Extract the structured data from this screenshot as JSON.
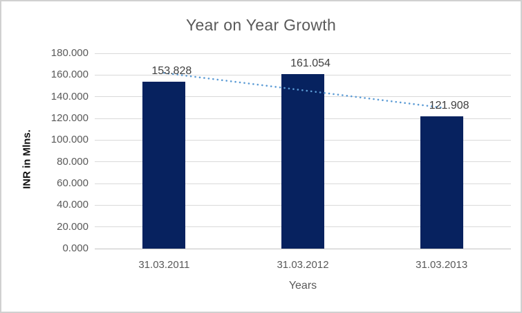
{
  "chart_data": {
    "type": "bar",
    "title": "Year on Year Growth",
    "xlabel": "Years",
    "ylabel": "INR in Mlns.",
    "categories": [
      "31.03.2011",
      "31.03.2012",
      "31.03.2013"
    ],
    "values": [
      153.828,
      161.054,
      121.908
    ],
    "data_labels": [
      "153.828",
      "161.054",
      "121.908"
    ],
    "y_tick_labels": [
      "180.000",
      "160.000",
      "140.000",
      "120.000",
      "100.000",
      "80.000",
      "60.000",
      "40.000",
      "20.000",
      "0.000"
    ],
    "y_tick_values": [
      180,
      160,
      140,
      120,
      100,
      80,
      60,
      40,
      20,
      0
    ],
    "ylim": [
      0,
      180
    ],
    "grid": true,
    "legend": false,
    "bar_color": "#07225f",
    "gridline_color": "#d9d9d9",
    "axis_line_color": "#c3c3c3",
    "title_color": "#595959",
    "tick_label_color": "#595959",
    "data_label_color": "#3f3f3f",
    "trendline": {
      "type": "linear",
      "style": "dotted",
      "color": "#5b9bd5",
      "fit_values": [
        161.9,
        145.9,
        130.0
      ]
    }
  }
}
